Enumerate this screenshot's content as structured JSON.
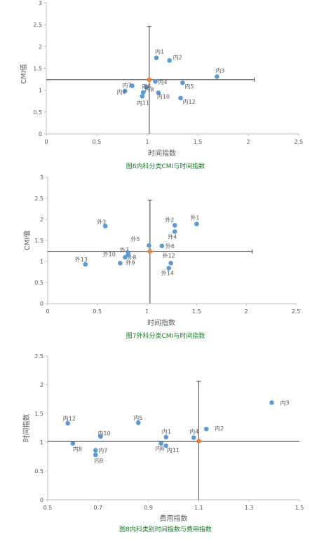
{
  "colors": {
    "point": "#5b9bd5",
    "center": "#ed7d31",
    "axis": "#bfbfbf",
    "cross": "#404040",
    "caption": "#1a7a2b"
  },
  "chart_data": [
    {
      "type": "scatter",
      "title": "",
      "xlabel": "时间指数",
      "ylabel": "CMI值",
      "caption": "图6内科分类CMI与时间指数",
      "xlim": [
        0,
        2.5
      ],
      "ylim": [
        0,
        3
      ],
      "xticks": [
        "0",
        "0.5",
        "1",
        "1.5",
        "2",
        "2.5"
      ],
      "yticks": [
        "0",
        "0.5",
        "1",
        "1.5",
        "2",
        "2.5",
        "3"
      ],
      "points": [
        {
          "label": "内1",
          "x": 1.09,
          "y": 1.74
        },
        {
          "label": "内2",
          "x": 1.22,
          "y": 1.68
        },
        {
          "label": "内3",
          "x": 1.69,
          "y": 1.31
        },
        {
          "label": "内4",
          "x": 1.08,
          "y": 1.2
        },
        {
          "label": "内5",
          "x": 1.35,
          "y": 1.17
        },
        {
          "label": "内7",
          "x": 0.85,
          "y": 1.1
        },
        {
          "label": "内9",
          "x": 0.78,
          "y": 0.98
        },
        {
          "label": "内8",
          "x": 0.99,
          "y": 1.07
        },
        {
          "label": "内6",
          "x": 0.96,
          "y": 0.95
        },
        {
          "label": "内10",
          "x": 1.11,
          "y": 0.94
        },
        {
          "label": "内11",
          "x": 0.95,
          "y": 0.86
        },
        {
          "label": "内12",
          "x": 1.33,
          "y": 0.82
        }
      ],
      "center": {
        "x": 1.02,
        "y": 1.24
      },
      "cross": {
        "x": 1.02,
        "y": 1.24,
        "xrange": [
          0,
          2.06
        ],
        "yrange": [
          0,
          2.46
        ]
      }
    },
    {
      "type": "scatter",
      "title": "",
      "xlabel": "时间指数",
      "ylabel": "CMI值",
      "caption": "图7外科分类CMI与时间指数",
      "xlim": [
        0,
        2.5
      ],
      "ylim": [
        0,
        3
      ],
      "xticks": [
        "0",
        "0.5",
        "1",
        "1.5",
        "2",
        "2.5"
      ],
      "yticks": [
        "0",
        "0.5",
        "1",
        "1.5",
        "2",
        "2.5",
        "3"
      ],
      "points": [
        {
          "label": "外1",
          "x": 1.5,
          "y": 1.89
        },
        {
          "label": "外2",
          "x": 1.28,
          "y": 1.86
        },
        {
          "label": "外3",
          "x": 0.58,
          "y": 1.84
        },
        {
          "label": "外4",
          "x": 1.28,
          "y": 1.71
        },
        {
          "label": "外5",
          "x": 1.02,
          "y": 1.38
        },
        {
          "label": "外6",
          "x": 1.15,
          "y": 1.37
        },
        {
          "label": "外7",
          "x": 0.81,
          "y": 1.21
        },
        {
          "label": "外8",
          "x": 0.78,
          "y": 1.1
        },
        {
          "label": "外10",
          "x": 0.81,
          "y": 1.16
        },
        {
          "label": "外9",
          "x": 0.73,
          "y": 0.96
        },
        {
          "label": "外12",
          "x": 1.24,
          "y": 0.96
        },
        {
          "label": "外13",
          "x": 0.38,
          "y": 0.93
        },
        {
          "label": "外14",
          "x": 1.22,
          "y": 0.84
        }
      ],
      "center": {
        "x": 1.03,
        "y": 1.24
      },
      "cross": {
        "x": 1.03,
        "y": 1.24,
        "xrange": [
          0,
          2.06
        ],
        "yrange": [
          0,
          2.46
        ]
      }
    },
    {
      "type": "scatter",
      "title": "",
      "xlabel": "费用指数",
      "ylabel": "时间指数",
      "caption": "图8内科类别时间指数与费用指数",
      "xlim": [
        0.5,
        1.5
      ],
      "ylim": [
        0,
        2.5
      ],
      "xticks": [
        "0.5",
        "0.7",
        "0.9",
        "1.1",
        "1.3",
        "1.5"
      ],
      "yticks": [
        "0",
        "0.5",
        "1",
        "1.5",
        "2",
        "2.5"
      ],
      "points": [
        {
          "label": "内3",
          "x": 1.39,
          "y": 1.69
        },
        {
          "label": "内2",
          "x": 1.13,
          "y": 1.23
        },
        {
          "label": "内4",
          "x": 1.08,
          "y": 1.08
        },
        {
          "label": "内5",
          "x": 0.86,
          "y": 1.34
        },
        {
          "label": "内12",
          "x": 0.58,
          "y": 1.33
        },
        {
          "label": "内10",
          "x": 0.71,
          "y": 1.1
        },
        {
          "label": "内1",
          "x": 0.97,
          "y": 1.09
        },
        {
          "label": "内6",
          "x": 0.95,
          "y": 0.98
        },
        {
          "label": "内11",
          "x": 0.97,
          "y": 0.94
        },
        {
          "label": "内8",
          "x": 0.6,
          "y": 0.98
        },
        {
          "label": "内7",
          "x": 0.69,
          "y": 0.86
        },
        {
          "label": "内9",
          "x": 0.69,
          "y": 0.78
        }
      ],
      "center": {
        "x": 1.1,
        "y": 1.02
      },
      "cross": {
        "x": 1.1,
        "y": 1.02,
        "xrange": [
          0.5,
          1.5
        ],
        "yrange": [
          0,
          2.06
        ]
      }
    }
  ]
}
